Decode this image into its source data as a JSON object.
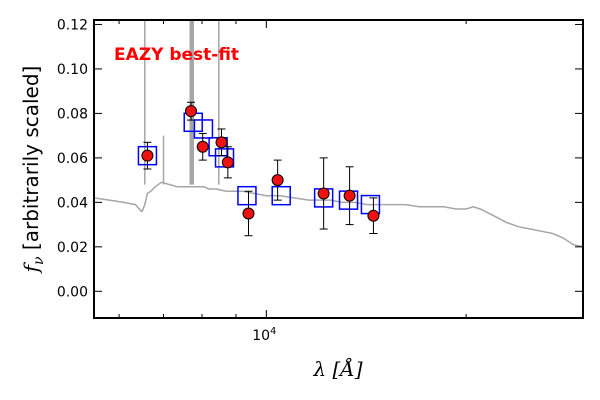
{
  "chart_data": {
    "type": "scatter",
    "annotation": "EAZY best-fit",
    "annotation_color": "#ff0000",
    "xlabel": "λ [Å]",
    "ylabel": "f_ν [arbitrarily scaled]",
    "ylabel_prefix": "f",
    "ylabel_sub": "ν",
    "ylabel_rest": " [arbitrarily scaled]",
    "xlabel_lambda": "λ",
    "xlabel_unit": "[Å]",
    "x_scale": "log",
    "xlim": [
      5500,
      30000
    ],
    "ylim": [
      -0.012,
      0.122
    ],
    "y_ticks": [
      "0.00",
      "0.02",
      "0.04",
      "0.06",
      "0.08",
      "0.10",
      "0.12"
    ],
    "y_tick_values": [
      0.0,
      0.02,
      0.04,
      0.06,
      0.08,
      0.1,
      0.12
    ],
    "x_major_tick_values": [
      10000
    ],
    "x_major_tick_base": "10",
    "x_major_tick_exp": "4",
    "x_minor_tick_values": [
      6000,
      7000,
      8000,
      9000,
      20000
    ],
    "grid": false,
    "colors": {
      "template": "#a6a6a6",
      "model_box": "#0000ff",
      "observed_fill": "#ee1111",
      "observed_edge": "#000000",
      "error_bar": "#000000"
    },
    "series": [
      {
        "role": "template",
        "x": [
          5500,
          5800,
          6100,
          6350,
          6480,
          6500,
          6560,
          6620,
          6700,
          6800,
          6950,
          7150,
          7350,
          7500,
          7700,
          7900,
          8050,
          8200,
          8400,
          8700,
          9000,
          9200,
          9600,
          10000,
          10500,
          11000,
          11600,
          12000,
          12500,
          13000,
          13600,
          14200,
          14800,
          15500,
          16200,
          17000,
          17800,
          18500,
          19300,
          20000,
          20500,
          21000,
          22000,
          23000,
          24000,
          25000,
          26000,
          27000,
          28000,
          29000,
          30000
        ],
        "y": [
          0.042,
          0.041,
          0.04,
          0.039,
          0.036,
          0.036,
          0.039,
          0.044,
          0.045,
          0.047,
          0.049,
          0.048,
          0.047,
          0.047,
          0.047,
          0.047,
          0.047,
          0.046,
          0.046,
          0.045,
          0.045,
          0.045,
          0.044,
          0.043,
          0.043,
          0.042,
          0.041,
          0.041,
          0.041,
          0.04,
          0.04,
          0.039,
          0.039,
          0.039,
          0.039,
          0.038,
          0.038,
          0.038,
          0.037,
          0.037,
          0.038,
          0.037,
          0.034,
          0.031,
          0.029,
          0.028,
          0.027,
          0.026,
          0.024,
          0.021,
          0.02
        ]
      },
      {
        "role": "emission_lines",
        "x": [
          6560,
          7000,
          7680,
          7720,
          7760,
          8480
        ],
        "y": [
          0.125,
          0.07,
          0.125,
          0.125,
          0.125,
          0.125
        ]
      },
      {
        "role": "model_fluxes",
        "x": [
          6620,
          7760,
          8040,
          8460,
          8650,
          9350,
          10530,
          12200,
          13300,
          14350
        ],
        "y": [
          0.061,
          0.076,
          0.073,
          0.065,
          0.06,
          0.043,
          0.043,
          0.042,
          0.041,
          0.039
        ]
      },
      {
        "role": "observed_photometry",
        "x": [
          6620,
          7700,
          8020,
          8560,
          8750,
          9400,
          10400,
          12200,
          13350,
          14500
        ],
        "y": [
          0.061,
          0.081,
          0.065,
          0.067,
          0.058,
          0.035,
          0.05,
          0.044,
          0.043,
          0.034
        ],
        "yerr": [
          0.006,
          0.004,
          0.006,
          0.006,
          0.007,
          0.01,
          0.009,
          0.016,
          0.013,
          0.008
        ]
      }
    ]
  }
}
